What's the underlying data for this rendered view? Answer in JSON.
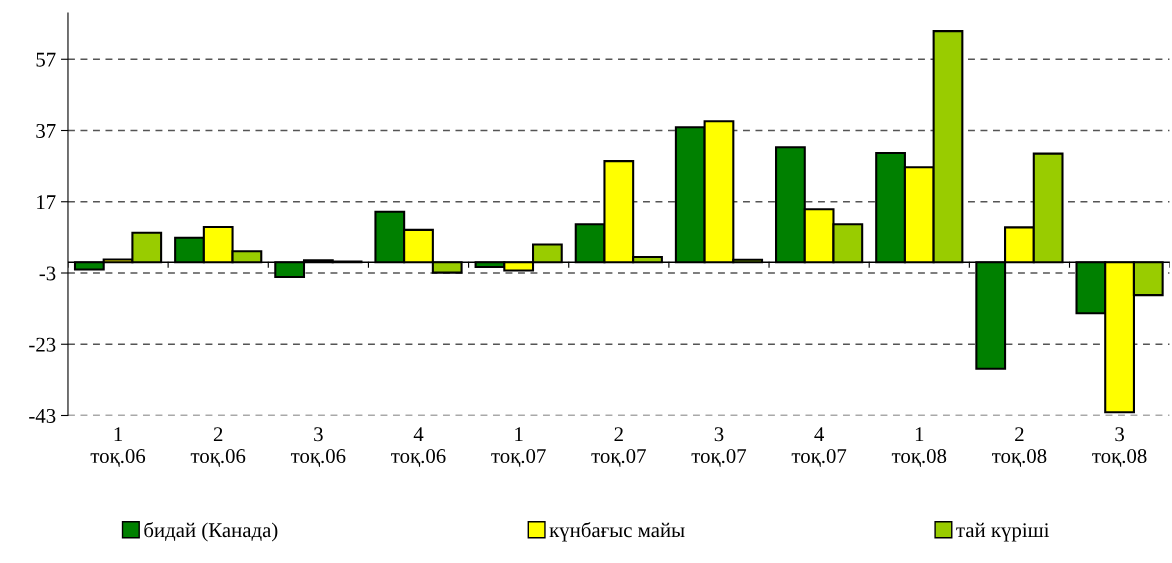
{
  "chart_data": {
    "type": "bar",
    "categories": [
      "1\nтоқ.06",
      "2\nтоқ.06",
      "3\nтоқ.06",
      "4\nтоқ.06",
      "1\nтоқ.07",
      "2\nтоқ.07",
      "3\nтоқ.07",
      "4\nтоқ.07",
      "1\nтоқ.08",
      "2\nтоқ.08",
      "3\nтоқ.08"
    ],
    "series": [
      {
        "name": "бидай (Канада)",
        "color": "#008000",
        "values": [
          -2,
          6.9,
          -4.1,
          14.2,
          -1.3,
          10.7,
          37.9,
          32.3,
          30.7,
          -29.9,
          -14.3
        ]
      },
      {
        "name": "күнбағыс майы",
        "color": "#ffff00",
        "values": [
          0.8,
          9.9,
          0.6,
          9.1,
          -2.3,
          28.4,
          39.6,
          14.9,
          26.7,
          9.8,
          -42.1
        ]
      },
      {
        "name": "тай күріші",
        "color": "#99cc00",
        "values": [
          8.3,
          3.1,
          0.2,
          -2.9,
          5,
          1.5,
          0.7,
          10.7,
          64.9,
          30.5,
          -9.2
        ]
      }
    ],
    "ylim": [
      -43,
      70
    ],
    "yticks": [
      -43,
      -23,
      -3,
      17,
      37,
      57
    ],
    "grid": "y",
    "legend": "bottom"
  }
}
